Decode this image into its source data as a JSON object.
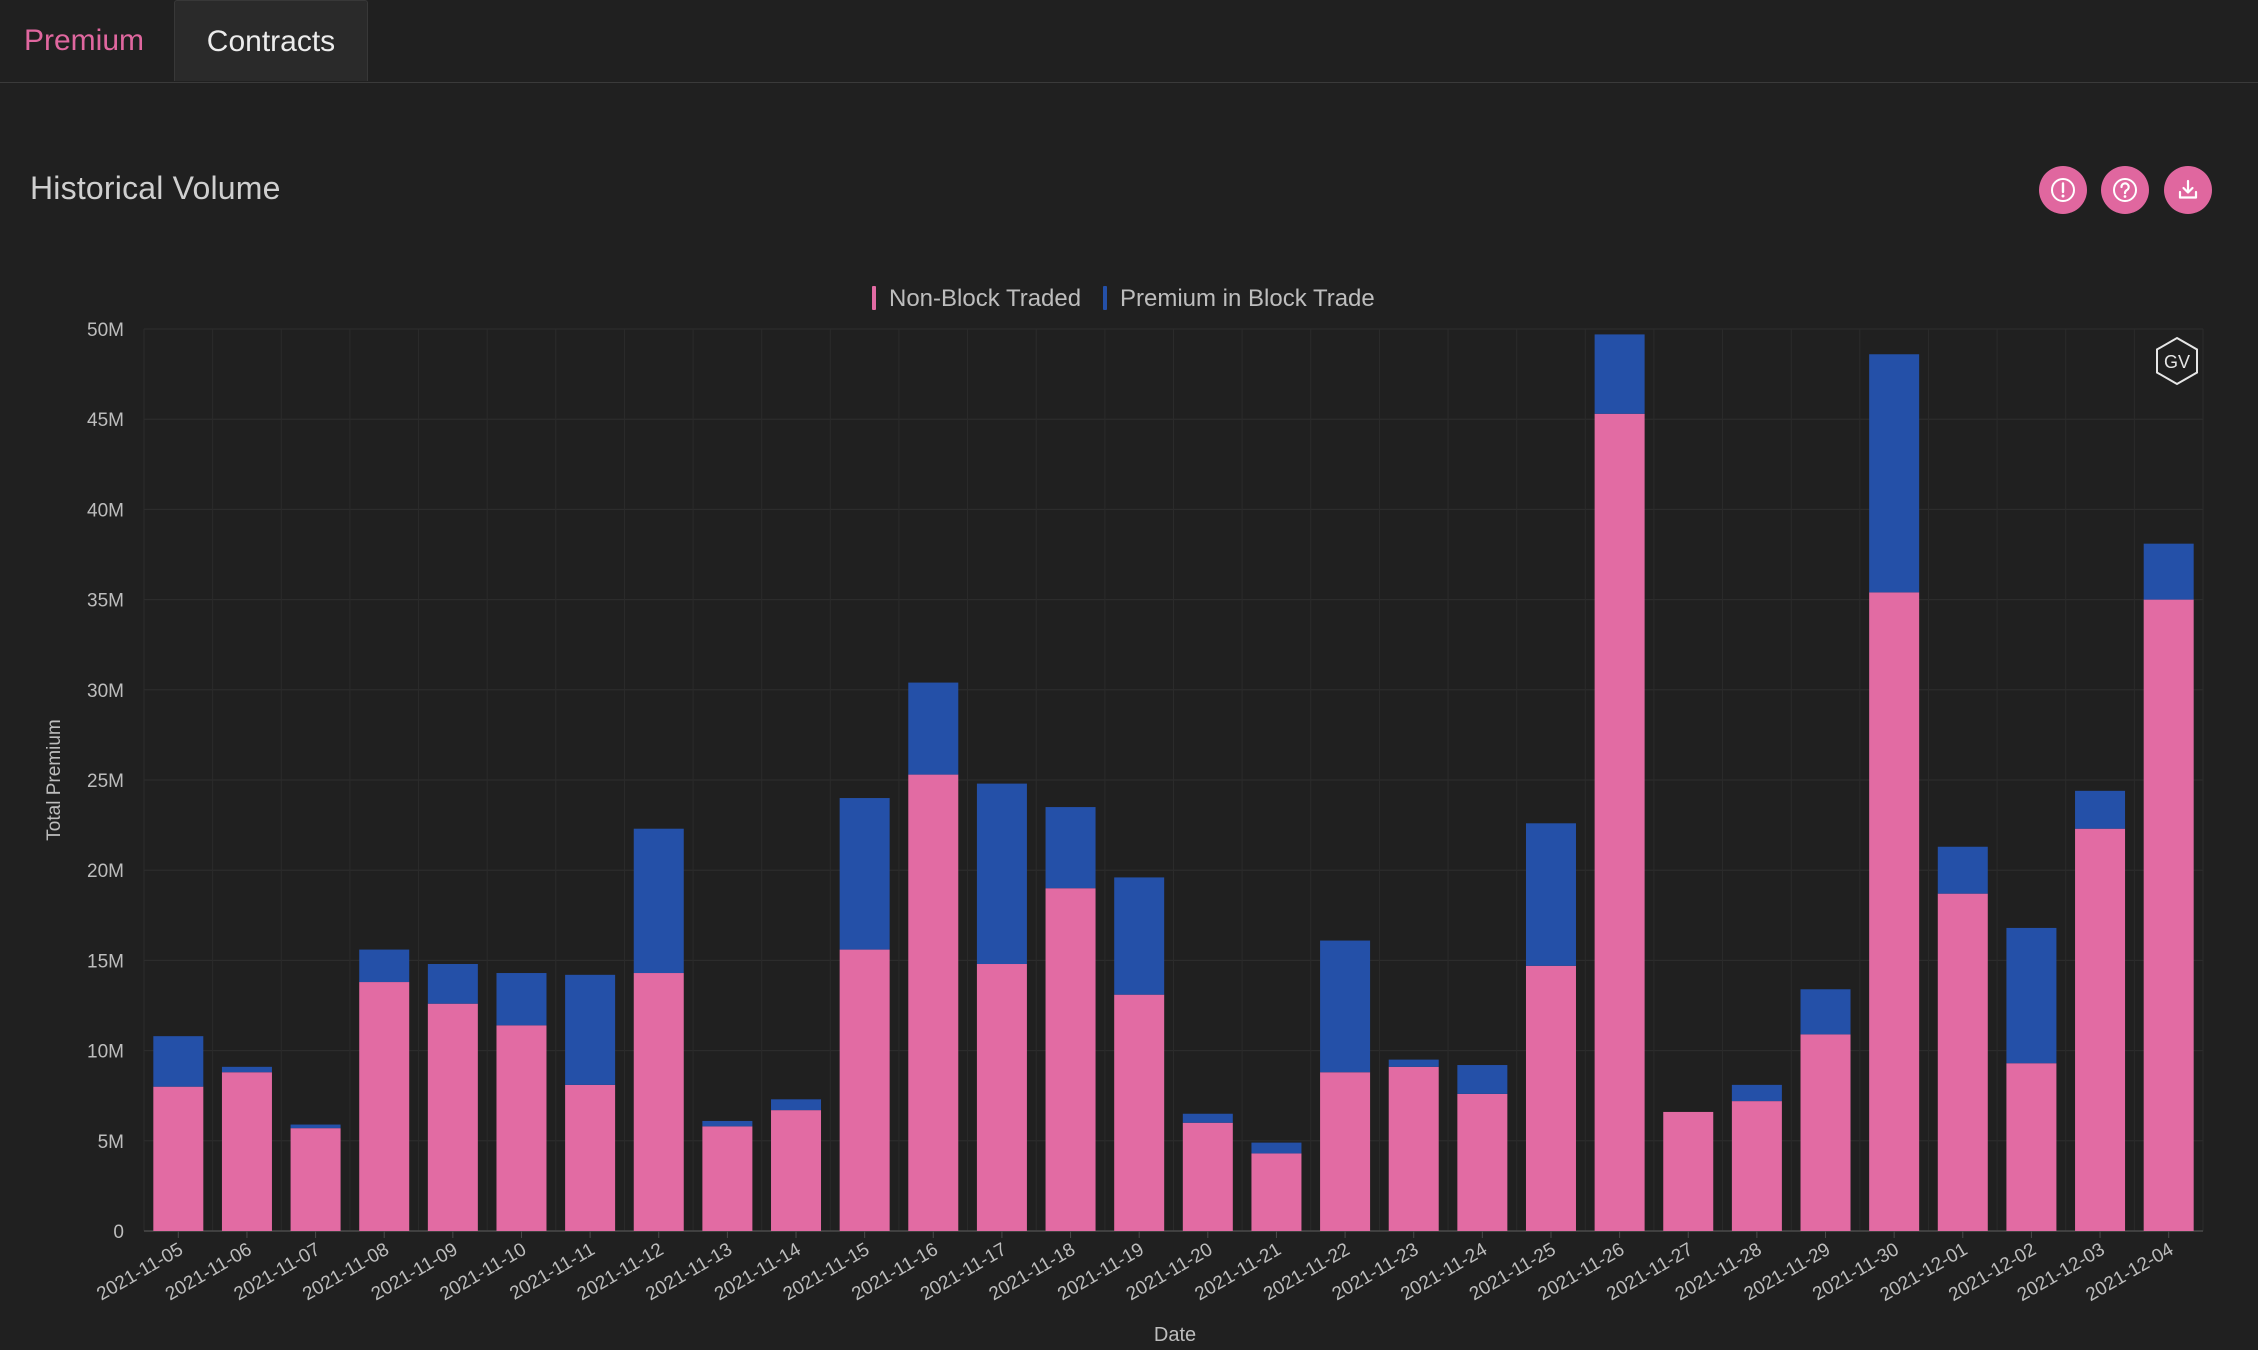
{
  "tabs": [
    {
      "label": "Premium",
      "active": true
    },
    {
      "label": "Contracts",
      "active": false
    }
  ],
  "section_title": "Historical Volume",
  "actions": [
    {
      "icon": "alert-icon"
    },
    {
      "icon": "help-icon"
    },
    {
      "icon": "download-icon"
    }
  ],
  "watermark": "GV",
  "colors": {
    "non_block": "#e26ba3",
    "block": "#2450a8",
    "accent": "#e0679f",
    "background": "#202020"
  },
  "chart_data": {
    "type": "bar",
    "stacked": true,
    "xlabel": "Date",
    "ylabel": "Total Premium",
    "ylim": [
      0,
      50000000
    ],
    "yticks": [
      {
        "value": 0,
        "label": "0"
      },
      {
        "value": 5000000,
        "label": "5M"
      },
      {
        "value": 10000000,
        "label": "10M"
      },
      {
        "value": 15000000,
        "label": "15M"
      },
      {
        "value": 20000000,
        "label": "20M"
      },
      {
        "value": 25000000,
        "label": "25M"
      },
      {
        "value": 30000000,
        "label": "30M"
      },
      {
        "value": 35000000,
        "label": "35M"
      },
      {
        "value": 40000000,
        "label": "40M"
      },
      {
        "value": 45000000,
        "label": "45M"
      },
      {
        "value": 50000000,
        "label": "50M"
      }
    ],
    "legend_position": "top-center",
    "grid": true,
    "categories": [
      "2021-11-05",
      "2021-11-06",
      "2021-11-07",
      "2021-11-08",
      "2021-11-09",
      "2021-11-10",
      "2021-11-11",
      "2021-11-12",
      "2021-11-13",
      "2021-11-14",
      "2021-11-15",
      "2021-11-16",
      "2021-11-17",
      "2021-11-18",
      "2021-11-19",
      "2021-11-20",
      "2021-11-21",
      "2021-11-22",
      "2021-11-23",
      "2021-11-24",
      "2021-11-25",
      "2021-11-26",
      "2021-11-27",
      "2021-11-28",
      "2021-11-29",
      "2021-11-30",
      "2021-12-01",
      "2021-12-02",
      "2021-12-03",
      "2021-12-04"
    ],
    "series": [
      {
        "name": "Non-Block Traded",
        "values": [
          8000000,
          8800000,
          5700000,
          13800000,
          12600000,
          11400000,
          8100000,
          14300000,
          5800000,
          6700000,
          15600000,
          25300000,
          14800000,
          19000000,
          13100000,
          6000000,
          4300000,
          8800000,
          9100000,
          7600000,
          14700000,
          45300000,
          6600000,
          7200000,
          10900000,
          35400000,
          18700000,
          9300000,
          22300000,
          35000000
        ]
      },
      {
        "name": "Premium in Block Trade",
        "values": [
          2800000,
          300000,
          200000,
          1800000,
          2200000,
          2900000,
          6100000,
          8000000,
          300000,
          600000,
          8400000,
          5100000,
          10000000,
          4500000,
          6500000,
          500000,
          600000,
          7300000,
          400000,
          1600000,
          7900000,
          4400000,
          0,
          900000,
          2500000,
          13200000,
          2600000,
          7500000,
          2100000,
          3100000
        ]
      }
    ]
  }
}
